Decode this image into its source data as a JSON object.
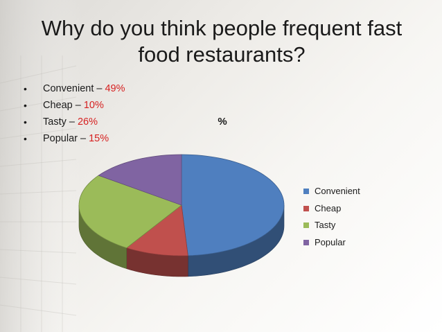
{
  "slide": {
    "title": "Why do you think people frequent fast food restaurants?",
    "bullets": [
      {
        "label": "Convenient – ",
        "value": "49%"
      },
      {
        "label": "Cheap – ",
        "value": "10%"
      },
      {
        "label": "Tasty – ",
        "value": "26%"
      },
      {
        "label": "Popular – ",
        "value": "15%"
      }
    ]
  },
  "chart_data": {
    "type": "pie",
    "title": "%",
    "categories": [
      "Convenient",
      "Cheap",
      "Tasty",
      "Popular"
    ],
    "values": [
      49,
      10,
      26,
      15
    ],
    "colors": [
      "#4f7fbf",
      "#c0504d",
      "#9bbb59",
      "#8064a2"
    ],
    "legend_position": "right",
    "three_d": true
  },
  "colors": {
    "highlight": "#d62020"
  }
}
